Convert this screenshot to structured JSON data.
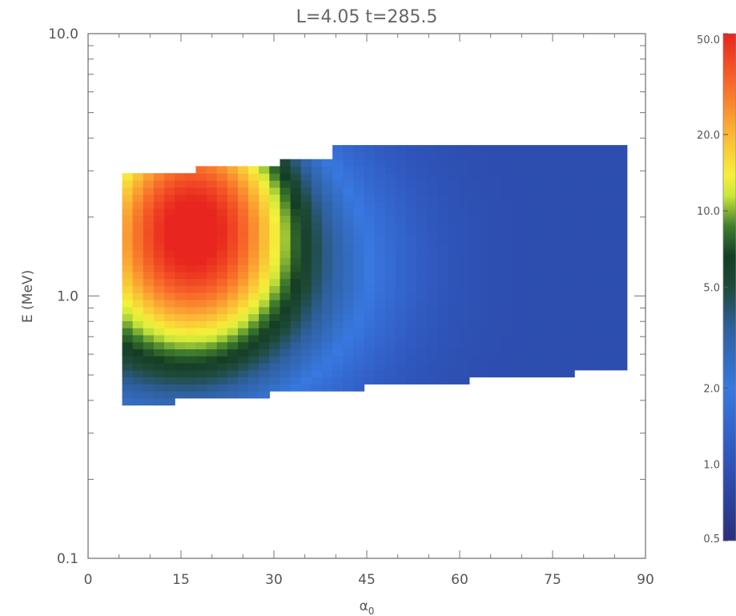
{
  "chart_data": {
    "type": "heatmap",
    "title": "L=4.05   t=285.5",
    "xlabel": "α",
    "xlabel_subscript": "0",
    "ylabel": "E (MeV)",
    "x_range": [
      0,
      90
    ],
    "y_range": [
      0.1,
      10.0
    ],
    "y_scale": "log",
    "x_ticks": [
      0,
      15,
      30,
      45,
      60,
      75,
      90
    ],
    "x_tick_labels": [
      "0",
      "15",
      "30",
      "45",
      "60",
      "75",
      "90"
    ],
    "y_ticks": [
      0.1,
      1.0,
      10.0
    ],
    "y_tick_labels": [
      "0.1",
      "1.0",
      "10.0"
    ],
    "colorbar": {
      "scale": "log",
      "range": [
        0.5,
        50.0
      ],
      "ticks": [
        0.5,
        1.0,
        2.0,
        5.0,
        10.0,
        20.0,
        50.0
      ],
      "tick_labels": [
        "0.5",
        "1.0",
        "2.0",
        "5.0",
        "10.0",
        "20.0",
        "50.0"
      ],
      "colormap": [
        [
          0.0,
          "#2a2f7a"
        ],
        [
          0.15,
          "#2e53b8"
        ],
        [
          0.3,
          "#3878e0"
        ],
        [
          0.42,
          "#2f5f9c"
        ],
        [
          0.5,
          "#1f4a3a"
        ],
        [
          0.56,
          "#143d24"
        ],
        [
          0.62,
          "#3f7d2e"
        ],
        [
          0.68,
          "#c8e63a"
        ],
        [
          0.72,
          "#f5f03a"
        ],
        [
          0.8,
          "#fbb835"
        ],
        [
          0.9,
          "#f86a2a"
        ],
        [
          1.0,
          "#e8251e"
        ]
      ]
    },
    "domain": {
      "alpha_min": 5.5,
      "alpha_max": 87,
      "alpha_step": 40,
      "low_edge_E": [
        0.38,
        0.52
      ],
      "high_edge_E_left": [
        2.85,
        3.35
      ],
      "high_edge_E_right": 3.65
    },
    "hotspot": {
      "alpha_center": 17,
      "E_center": 1.8,
      "peak_flux": 50
    }
  }
}
